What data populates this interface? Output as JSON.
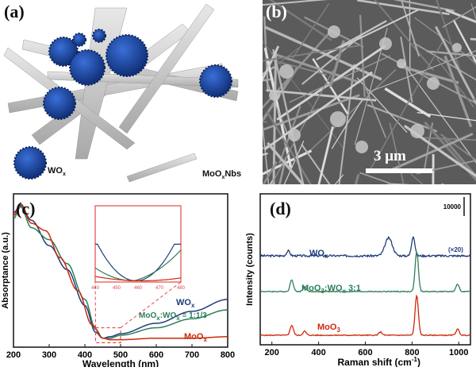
{
  "colors": {
    "wox": "#1f3d7a",
    "mix": "#2e7d5b",
    "moo3": "#cc2a0a",
    "inset_frame": "#e24a4a",
    "sphere": "#1846a0",
    "belt": "#cfcfcf"
  },
  "panel_a": {
    "label": "(a)",
    "legend_sphere_text": "WO",
    "legend_sphere_sub": "x",
    "legend_belt_text": "MoO",
    "legend_belt_sub": "x",
    "legend_belt_suffix": "Nbs"
  },
  "panel_b": {
    "label": "(b)",
    "scale_text": "3 μm"
  },
  "panel_c": {
    "label": "(c)",
    "chart_data": {
      "type": "line",
      "xlabel": "Wavelength (nm)",
      "ylabel": "Absorptance (a.u.)",
      "xlim": [
        200,
        800
      ],
      "xticks": [
        200,
        300,
        400,
        500,
        600,
        700,
        800
      ],
      "series": [
        {
          "name": "WOx",
          "color": "#1f3d7a",
          "x": [
            200,
            220,
            250,
            300,
            350,
            400,
            430,
            450,
            470,
            500,
            600,
            700,
            800
          ],
          "y": [
            0.9,
            0.95,
            0.85,
            0.68,
            0.52,
            0.28,
            0.1,
            0.06,
            0.07,
            0.09,
            0.16,
            0.24,
            0.32
          ]
        },
        {
          "name": "MoOx:WOx = 1:1/3",
          "color": "#2e7d5b",
          "x": [
            200,
            220,
            250,
            300,
            350,
            400,
            430,
            450,
            470,
            500,
            600,
            700,
            800
          ],
          "y": [
            0.86,
            0.94,
            0.8,
            0.72,
            0.56,
            0.32,
            0.12,
            0.06,
            0.06,
            0.08,
            0.13,
            0.19,
            0.25
          ]
        },
        {
          "name": "MoOx",
          "color": "#cc2a0a",
          "x": [
            200,
            220,
            250,
            290,
            330,
            380,
            420,
            450,
            470,
            500,
            600,
            700,
            800
          ],
          "y": [
            0.88,
            0.96,
            0.83,
            0.78,
            0.6,
            0.38,
            0.15,
            0.06,
            0.05,
            0.05,
            0.06,
            0.06,
            0.07
          ]
        }
      ],
      "labels": {
        "wox": "WO",
        "wox_sub": "x",
        "mix_a": "MoO",
        "mix_a_sub": "x",
        "mix_b": ":WO",
        "mix_b_sub": "x",
        "mix_c": " = 1:1/3",
        "moox": "MoO",
        "moox_sub": "x"
      },
      "inset": {
        "xlim": [
          440,
          480
        ],
        "xticks": [
          "440",
          "450",
          "460",
          "470",
          "480"
        ]
      }
    }
  },
  "panel_d": {
    "label": "(d)",
    "chart_data": {
      "type": "line",
      "xlabel": "Raman shift (cm",
      "xlabel_sup": "-1",
      "xlabel_end": ")",
      "ylabel": "Intensity (counts)",
      "xlim": [
        150,
        1050
      ],
      "xticks": [
        200,
        400,
        600,
        800,
        1000
      ],
      "scale_bar_label": "10000",
      "series": [
        {
          "name": "WOx",
          "color": "#1f3d7a",
          "annotation": "(×20)",
          "peaks": [
            [
              270,
              0.25
            ],
            [
              700,
              0.9
            ],
            [
              805,
              1.0
            ]
          ]
        },
        {
          "name": "MoO3:WOx 3:1",
          "color": "#2e7d5b",
          "peaks": [
            [
              285,
              0.3
            ],
            [
              340,
              0.12
            ],
            [
              820,
              1.0
            ],
            [
              995,
              0.18
            ]
          ]
        },
        {
          "name": "MoO3",
          "color": "#cc2a0a",
          "peaks": [
            [
              285,
              0.25
            ],
            [
              340,
              0.1
            ],
            [
              665,
              0.08
            ],
            [
              820,
              1.0
            ],
            [
              995,
              0.15
            ]
          ]
        }
      ],
      "labels": {
        "wox": "WO",
        "wox_sub": "x",
        "mix": "MoO",
        "mix_sub": "3",
        "mix_b": ":WO",
        "mix_b_sub": "x",
        "mix_c": " 3:1",
        "moo3": "MoO",
        "moo3_sub": "3",
        "x20": "(×20)"
      }
    }
  }
}
